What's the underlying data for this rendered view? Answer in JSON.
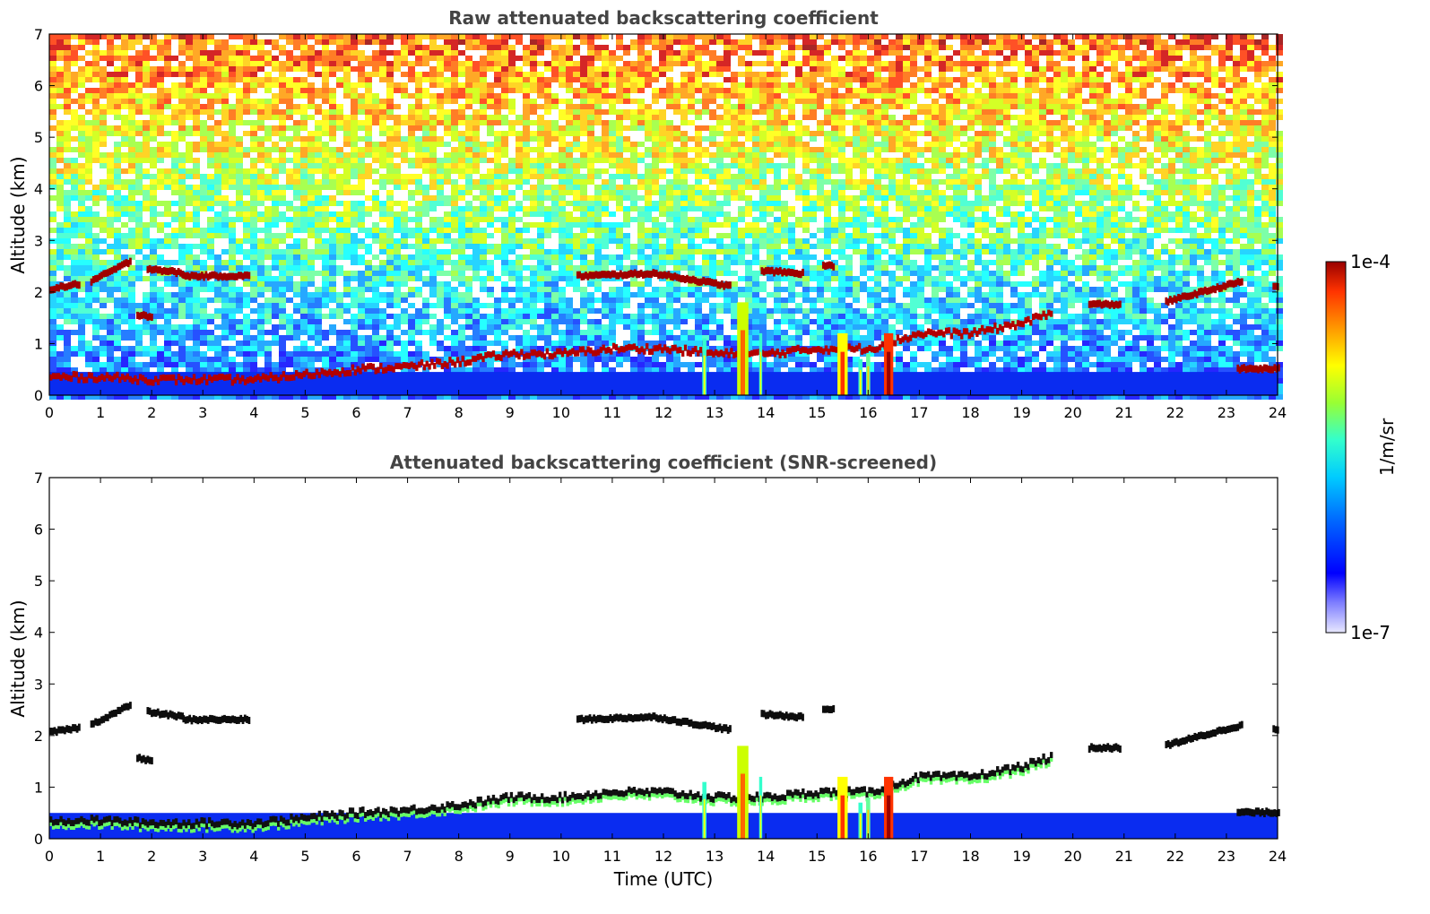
{
  "chart_data": [
    {
      "type": "heatmap",
      "title": "Raw attenuated backscattering coefficient",
      "xlabel": "",
      "ylabel": "Altitude (km)",
      "xlim": [
        0,
        24
      ],
      "ylim": [
        0,
        7
      ],
      "x_ticks": [
        "0",
        "1",
        "2",
        "3",
        "4",
        "5",
        "6",
        "7",
        "8",
        "9",
        "10",
        "11",
        "12",
        "13",
        "14",
        "15",
        "16",
        "17",
        "18",
        "19",
        "20",
        "21",
        "22",
        "23",
        "24"
      ],
      "y_ticks": [
        "0",
        "1",
        "2",
        "3",
        "4",
        "5",
        "6",
        "7"
      ],
      "noise": true,
      "boundary_layer": [
        {
          "t": 0,
          "h": 0.35
        },
        {
          "t": 1,
          "h": 0.35
        },
        {
          "t": 2,
          "h": 0.3
        },
        {
          "t": 3,
          "h": 0.3
        },
        {
          "t": 4,
          "h": 0.3
        },
        {
          "t": 5,
          "h": 0.4
        },
        {
          "t": 6,
          "h": 0.5
        },
        {
          "t": 7,
          "h": 0.55
        },
        {
          "t": 8,
          "h": 0.65
        },
        {
          "t": 9,
          "h": 0.8
        },
        {
          "t": 10,
          "h": 0.8
        },
        {
          "t": 11,
          "h": 0.9
        },
        {
          "t": 12,
          "h": 0.9
        },
        {
          "t": 13,
          "h": 0.8
        },
        {
          "t": 14,
          "h": 0.8
        },
        {
          "t": 15,
          "h": 0.9
        },
        {
          "t": 16,
          "h": 0.9
        },
        {
          "t": 17,
          "h": 1.2
        },
        {
          "t": 18,
          "h": 1.2
        },
        {
          "t": 19,
          "h": 1.4
        },
        {
          "t": 19.6,
          "h": 1.6
        }
      ],
      "cloud_layers": [
        {
          "t0": 0.0,
          "t1": 0.6,
          "h0": 2.05,
          "h1": 2.15
        },
        {
          "t0": 0.8,
          "t1": 1.6,
          "h0": 2.2,
          "h1": 2.6
        },
        {
          "t0": 1.9,
          "t1": 2.6,
          "h0": 2.45,
          "h1": 2.35
        },
        {
          "t0": 2.6,
          "t1": 3.9,
          "h0": 2.3,
          "h1": 2.3
        },
        {
          "t0": 1.7,
          "t1": 2.0,
          "h0": 1.55,
          "h1": 1.5
        },
        {
          "t0": 10.3,
          "t1": 11.8,
          "h0": 2.3,
          "h1": 2.35
        },
        {
          "t0": 11.8,
          "t1": 13.3,
          "h0": 2.35,
          "h1": 2.1
        },
        {
          "t0": 13.9,
          "t1": 14.7,
          "h0": 2.4,
          "h1": 2.35
        },
        {
          "t0": 15.1,
          "t1": 15.3,
          "h0": 2.5,
          "h1": 2.5
        },
        {
          "t0": 20.3,
          "t1": 20.9,
          "h0": 1.75,
          "h1": 1.75
        },
        {
          "t0": 21.8,
          "t1": 23.3,
          "h0": 1.8,
          "h1": 2.2
        },
        {
          "t0": 23.9,
          "t1": 24.0,
          "h0": 2.1,
          "h1": 2.1
        },
        {
          "t0": 23.2,
          "t1": 24.0,
          "h0": 0.5,
          "h1": 0.5
        }
      ],
      "columns": [
        {
          "t": 12.8,
          "w": 0.08,
          "top": 1.1,
          "v": 0.35
        },
        {
          "t": 13.55,
          "w": 0.22,
          "top": 1.8,
          "v": 0.55
        },
        {
          "t": 13.9,
          "w": 0.06,
          "top": 1.2,
          "v": 0.4
        },
        {
          "t": 15.5,
          "w": 0.2,
          "top": 1.2,
          "v": 0.6
        },
        {
          "t": 15.85,
          "w": 0.08,
          "top": 0.7,
          "v": 0.35
        },
        {
          "t": 16.0,
          "w": 0.08,
          "top": 0.8,
          "v": 0.45
        },
        {
          "t": 16.4,
          "w": 0.18,
          "top": 1.2,
          "v": 0.88
        }
      ]
    },
    {
      "type": "heatmap",
      "title": "Attenuated backscattering coefficient (SNR-screened)",
      "xlabel": "Time (UTC)",
      "ylabel": "Altitude (km)",
      "xlim": [
        0,
        24
      ],
      "ylim": [
        0,
        7
      ],
      "x_ticks": [
        "0",
        "1",
        "2",
        "3",
        "4",
        "5",
        "6",
        "7",
        "8",
        "9",
        "10",
        "11",
        "12",
        "13",
        "14",
        "15",
        "16",
        "17",
        "18",
        "19",
        "20",
        "21",
        "22",
        "23",
        "24"
      ],
      "y_ticks": [
        "0",
        "1",
        "2",
        "3",
        "4",
        "5",
        "6",
        "7"
      ],
      "noise": false
    }
  ],
  "colorbar": {
    "label": "1/m/sr",
    "max_label": "1e-4",
    "min_label": "1e-7",
    "colors": [
      "#0000ff",
      "#0066ff",
      "#00ccff",
      "#33ffcc",
      "#99ff33",
      "#ffff00",
      "#ff9900",
      "#ff3300",
      "#990000"
    ]
  }
}
